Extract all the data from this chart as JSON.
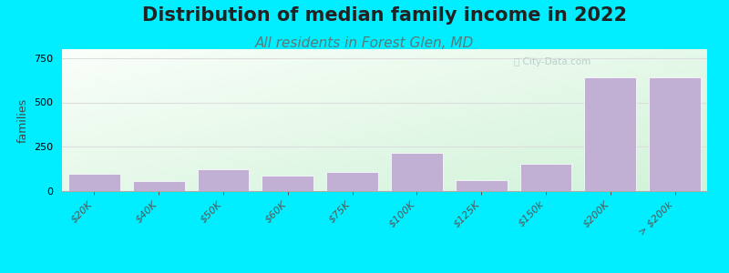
{
  "title": "Distribution of median family income in 2022",
  "subtitle": "All residents in Forest Glen, MD",
  "ylabel": "families",
  "categories": [
    "$20K",
    "$40K",
    "$50K",
    "$60K",
    "$75K",
    "$100K",
    "$125K",
    "$150k",
    "$200K",
    "> $200k"
  ],
  "values": [
    100,
    55,
    125,
    85,
    110,
    215,
    60,
    155,
    640,
    640
  ],
  "bar_color": "#c2afd4",
  "bar_edge_color": "#ffffff",
  "background_color": "#00eeff",
  "plot_bg_top_left": "#ceecd8",
  "plot_bg_top_right": "#eaf5f0",
  "plot_bg_bottom": "#f8fff8",
  "title_fontsize": 15,
  "title_color": "#222222",
  "subtitle_fontsize": 11,
  "subtitle_color": "#5a7a7a",
  "ylabel_fontsize": 9,
  "tick_fontsize": 8,
  "ylim": [
    0,
    800
  ],
  "yticks": [
    0,
    250,
    500,
    750
  ],
  "watermark": "ⓘ City-Data.com",
  "watermark_color": "#b0c8c8",
  "grid_color": "#dddddd"
}
